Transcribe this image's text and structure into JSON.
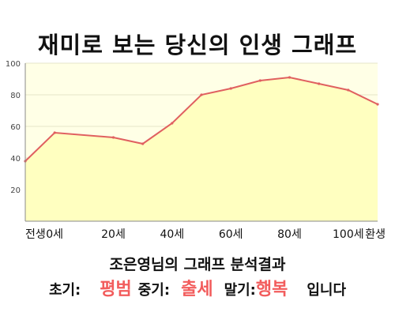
{
  "page_title": "재미로 보는 당신의 인생 그래프",
  "summary": "조은영님의 그래프 분석결과",
  "verdict": {
    "early_label": "초기:",
    "early_value": "평범",
    "middle_label": "중기:",
    "middle_value": "출세",
    "late_label": "말기:",
    "late_value": "행복",
    "suffix": "입니다"
  },
  "colors": {
    "accent": "#f25c5c",
    "line": "#e06060",
    "fill": "#ffffc0",
    "plot_bg": "#ffffe6",
    "grid": "#e4e4c8",
    "axis": "#888888"
  },
  "chart_data": {
    "type": "area",
    "title": "재미로 보는 당신의 인생 그래프",
    "xlabel": "",
    "ylabel": "",
    "xlim": [
      -10,
      110
    ],
    "ylim": [
      0,
      100
    ],
    "yticks": [
      20,
      40,
      60,
      80,
      100
    ],
    "xticks": [
      {
        "value": -10,
        "label": "전생"
      },
      {
        "value": 0,
        "label": "0세"
      },
      {
        "value": 20,
        "label": "20세"
      },
      {
        "value": 40,
        "label": "40세"
      },
      {
        "value": 60,
        "label": "60세"
      },
      {
        "value": 80,
        "label": "80세"
      },
      {
        "value": 100,
        "label": "100세"
      },
      {
        "value": 110,
        "label": "환생"
      }
    ],
    "grid": true,
    "legend": "none",
    "series": [
      {
        "x": [
          -10,
          0,
          20,
          30,
          40,
          50,
          60,
          70,
          80,
          90,
          100,
          110
        ],
        "values": [
          38,
          56,
          53,
          49,
          62,
          80,
          84,
          89,
          91,
          87,
          83,
          74
        ]
      }
    ]
  }
}
